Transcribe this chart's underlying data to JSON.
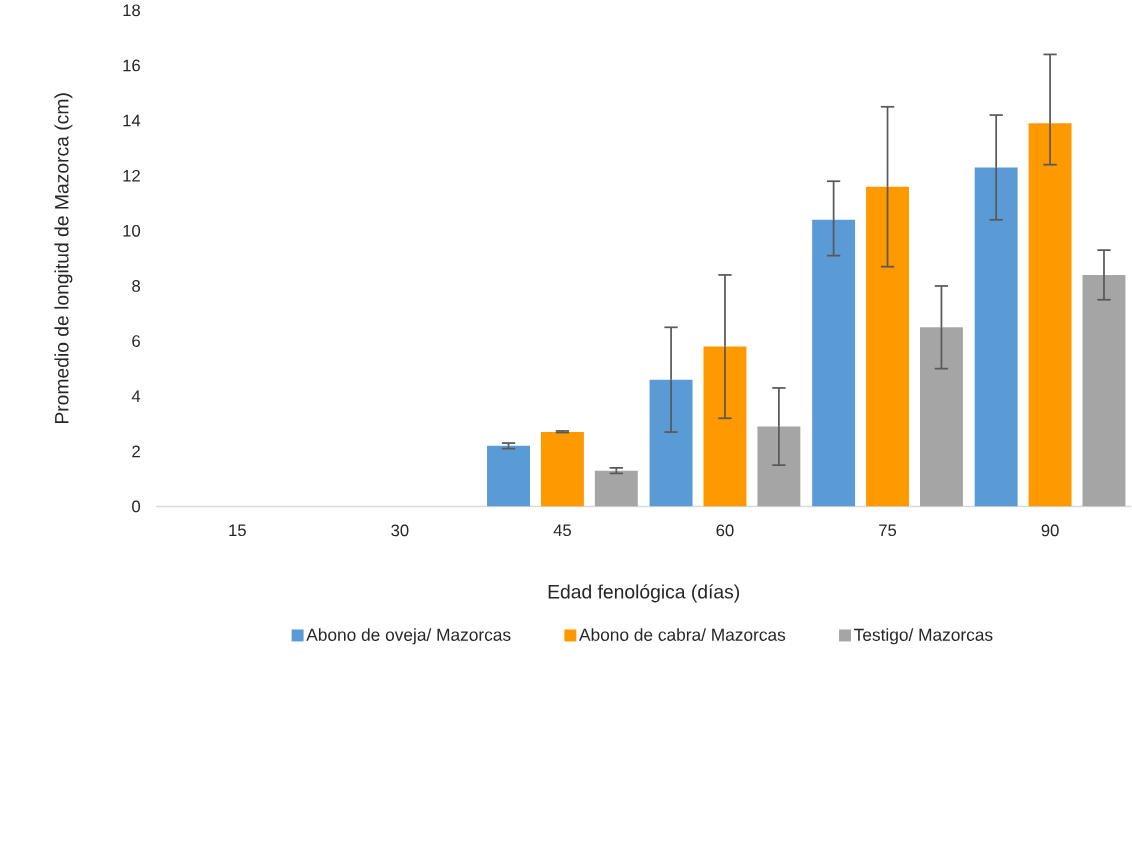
{
  "chart_data": {
    "type": "bar",
    "xlabel": "Edad fenológica (días)",
    "ylabel": "Promedio de longitud de Mazorca (cm)",
    "categories": [
      "15",
      "30",
      "45",
      "60",
      "75",
      "90"
    ],
    "ylim": [
      0,
      18
    ],
    "yticks": [
      0,
      2,
      4,
      6,
      8,
      10,
      12,
      14,
      16,
      18
    ],
    "legend": "bottom",
    "series": [
      {
        "name": "Abono de oveja/ Mazorcas",
        "color": "#5b9bd5",
        "values": [
          0,
          0,
          2.2,
          4.6,
          10.4,
          12.3
        ],
        "errors": [
          null,
          null,
          [
            2.1,
            2.3
          ],
          [
            2.7,
            6.5
          ],
          [
            9.1,
            11.8
          ],
          [
            10.4,
            14.2
          ]
        ]
      },
      {
        "name": "Abono de cabra/ Mazorcas",
        "color": "#ff9900",
        "values": [
          0,
          0,
          2.7,
          5.8,
          11.6,
          13.9
        ],
        "errors": [
          null,
          null,
          [
            2.68,
            2.74
          ],
          [
            3.2,
            8.4
          ],
          [
            8.7,
            14.5
          ],
          [
            12.4,
            16.4
          ]
        ]
      },
      {
        "name": "Testigo/ Mazorcas",
        "color": "#a5a5a5",
        "values": [
          0,
          0,
          1.3,
          2.9,
          6.5,
          8.4
        ],
        "errors": [
          null,
          null,
          [
            1.2,
            1.4
          ],
          [
            1.5,
            4.3
          ],
          [
            5.0,
            8.0
          ],
          [
            7.5,
            9.3
          ]
        ]
      }
    ]
  }
}
